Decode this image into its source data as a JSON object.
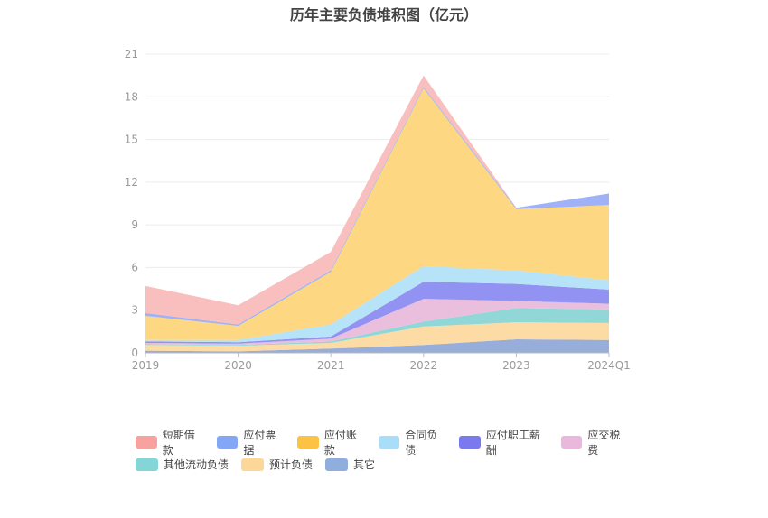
{
  "chart_data": {
    "type": "area",
    "title": "历年主要负债堆积图（亿元）",
    "categories": [
      "2019",
      "2020",
      "2021",
      "2022",
      "2023",
      "2024Q1"
    ],
    "ylim": [
      0,
      21
    ],
    "yticks": [
      0,
      3,
      6,
      9,
      12,
      15,
      18,
      21
    ],
    "stacked": true,
    "legend_position": "bottom",
    "series": [
      {
        "name": "其它",
        "color": "#91aad9",
        "values": [
          0.15,
          0.1,
          0.3,
          0.55,
          0.95,
          0.9
        ]
      },
      {
        "name": "预计负债",
        "color": "#fdd9a0",
        "values": [
          0.4,
          0.4,
          0.4,
          1.3,
          1.2,
          1.2
        ]
      },
      {
        "name": "其他流动负债",
        "color": "#8bd5d5",
        "values": [
          0.05,
          0.05,
          0.1,
          0.35,
          1.0,
          0.95
        ]
      },
      {
        "name": "应交税费",
        "color": "#e9bcdc",
        "values": [
          0.1,
          0.1,
          0.2,
          1.6,
          0.5,
          0.4
        ]
      },
      {
        "name": "应付职工薪酬",
        "color": "#8c8cf2",
        "values": [
          0.1,
          0.1,
          0.15,
          1.2,
          1.2,
          1.0
        ]
      },
      {
        "name": "合同负债",
        "color": "#b3e2f8",
        "values": [
          0.1,
          0.15,
          0.85,
          1.1,
          0.95,
          0.65
        ]
      },
      {
        "name": "应付账款",
        "color": "#fdd57a",
        "values": [
          1.7,
          1.0,
          3.7,
          12.5,
          4.3,
          5.3
        ]
      },
      {
        "name": "应付票据",
        "color": "#9aaef8",
        "values": [
          0.2,
          0.1,
          0.1,
          0.1,
          0.1,
          0.8
        ]
      },
      {
        "name": "短期借款",
        "color": "#f9bcbc",
        "values": [
          1.9,
          1.35,
          1.3,
          0.8,
          0.0,
          0.0
        ]
      }
    ],
    "legend_order": [
      "短期借款",
      "应付票据",
      "应付账款",
      "合同负债",
      "应付职工薪酬",
      "应交税费",
      "其他流动负债",
      "预计负债",
      "其它"
    ],
    "legend_colors": {
      "短期借款": "#f7a29e",
      "应付票据": "#84a7f5",
      "应付账款": "#fbc244",
      "合同负债": "#a9def9",
      "应付职工薪酬": "#7b79ee",
      "应交税费": "#e9b8dc",
      "其他流动负债": "#84d6d6",
      "预计负债": "#fdd79a",
      "其它": "#8faedd"
    }
  }
}
